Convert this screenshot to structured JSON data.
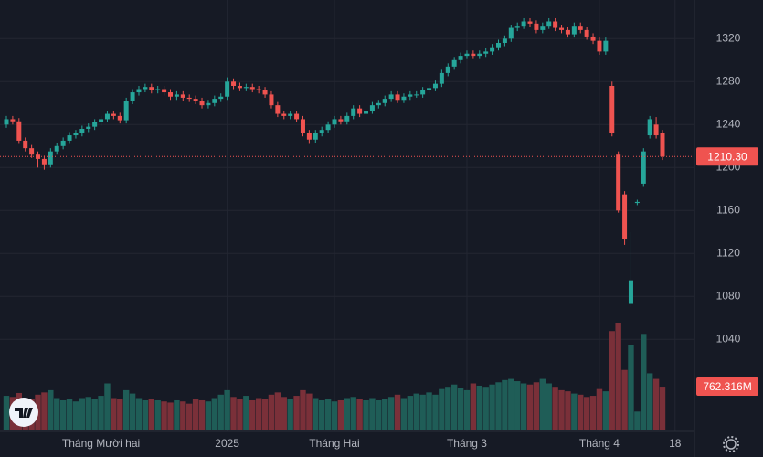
{
  "chart_data": {
    "type": "candlestick",
    "categories": [
      null,
      null,
      null,
      null,
      null,
      null,
      null,
      null,
      null,
      null,
      null,
      null,
      null,
      null,
      null,
      "Tháng Mười hai",
      null,
      null,
      null,
      null,
      null,
      null,
      null,
      null,
      null,
      null,
      null,
      null,
      null,
      null,
      null,
      null,
      null,
      null,
      null,
      "2025",
      null,
      null,
      null,
      null,
      null,
      null,
      null,
      null,
      null,
      null,
      null,
      null,
      null,
      null,
      null,
      null,
      "Tháng Hai",
      null,
      null,
      null,
      null,
      null,
      null,
      null,
      null,
      null,
      null,
      null,
      null,
      null,
      null,
      null,
      null,
      null,
      null,
      null,
      null,
      "Tháng 3",
      null,
      null,
      null,
      null,
      null,
      null,
      null,
      null,
      null,
      null,
      null,
      null,
      null,
      null,
      null,
      null,
      null,
      null,
      null,
      null,
      "Tháng 4",
      null,
      null,
      null,
      null,
      null,
      null,
      null,
      null,
      null,
      null,
      null,
      "18"
    ],
    "open": [
      1240,
      1245,
      1243,
      1225,
      1218,
      1212,
      1208,
      1203,
      1215,
      1220,
      1225,
      1230,
      1232,
      1236,
      1238,
      1242,
      1245,
      1250,
      1248,
      1244,
      1262,
      1270,
      1273,
      1275,
      1272,
      1273,
      1270,
      1266,
      1268,
      1265,
      1264,
      1262,
      1258,
      1260,
      1264,
      1266,
      1280,
      1276,
      1274,
      1275,
      1273,
      1272,
      1268,
      1258,
      1250,
      1248,
      1250,
      1245,
      1232,
      1226,
      1232,
      1235,
      1240,
      1245,
      1243,
      1248,
      1255,
      1250,
      1253,
      1258,
      1260,
      1264,
      1268,
      1263,
      1266,
      1268,
      1268,
      1272,
      1274,
      1278,
      1288,
      1294,
      1300,
      1304,
      1306,
      1304,
      1306,
      1308,
      1312,
      1316,
      1320,
      1330,
      1332,
      1336,
      1334,
      1328,
      1332,
      1336,
      1330,
      1328,
      1324,
      1332,
      1328,
      1322,
      1318,
      1308,
      1276,
      1212,
      1175,
      1073,
      1167,
      1185,
      1230,
      1240,
      1232,
      null,
      null
    ],
    "high": [
      1248,
      1248,
      1246,
      1228,
      1221,
      1215,
      1211,
      1218,
      1223,
      1228,
      1233,
      1235,
      1239,
      1241,
      1245,
      1248,
      1253,
      1253,
      1251,
      1265,
      1273,
      1276,
      1278,
      1278,
      1276,
      1276,
      1273,
      1271,
      1271,
      1268,
      1267,
      1265,
      1263,
      1267,
      1269,
      1284,
      1283,
      1279,
      1278,
      1278,
      1276,
      1275,
      1271,
      1261,
      1253,
      1253,
      1253,
      1248,
      1235,
      1235,
      1238,
      1243,
      1248,
      1248,
      1251,
      1258,
      1258,
      1256,
      1261,
      1263,
      1267,
      1271,
      1271,
      1269,
      1271,
      1271,
      1275,
      1277,
      1281,
      1291,
      1297,
      1303,
      1307,
      1309,
      1309,
      1309,
      1311,
      1315,
      1319,
      1323,
      1333,
      1335,
      1339,
      1339,
      1337,
      1335,
      1339,
      1339,
      1333,
      1331,
      1335,
      1335,
      1331,
      1325,
      1321,
      1321,
      1280,
      1215,
      1178,
      1140,
      1170,
      1218,
      1248,
      1247,
      1235,
      null,
      null
    ],
    "low": [
      1237,
      1240,
      1222,
      1215,
      1209,
      1200,
      1198,
      1200,
      1212,
      1217,
      1222,
      1227,
      1229,
      1233,
      1235,
      1239,
      1242,
      1245,
      1241,
      1241,
      1259,
      1267,
      1270,
      1269,
      1269,
      1267,
      1263,
      1263,
      1262,
      1261,
      1259,
      1255,
      1255,
      1257,
      1261,
      1263,
      1273,
      1271,
      1271,
      1270,
      1269,
      1265,
      1255,
      1247,
      1245,
      1245,
      1242,
      1229,
      1222,
      1223,
      1229,
      1232,
      1237,
      1240,
      1240,
      1245,
      1247,
      1247,
      1250,
      1255,
      1257,
      1261,
      1260,
      1260,
      1263,
      1265,
      1265,
      1269,
      1271,
      1275,
      1285,
      1291,
      1297,
      1301,
      1301,
      1301,
      1303,
      1305,
      1309,
      1313,
      1317,
      1327,
      1329,
      1331,
      1325,
      1325,
      1329,
      1327,
      1325,
      1321,
      1321,
      1325,
      1319,
      1315,
      1305,
      1305,
      1229,
      1158,
      1128,
      1070,
      1165,
      1182,
      1227,
      1227,
      1207,
      null,
      null
    ],
    "close": [
      1245,
      1243,
      1225,
      1218,
      1212,
      1208,
      1203,
      1215,
      1220,
      1225,
      1230,
      1232,
      1236,
      1238,
      1242,
      1245,
      1250,
      1248,
      1244,
      1262,
      1270,
      1273,
      1275,
      1272,
      1273,
      1270,
      1266,
      1268,
      1265,
      1264,
      1262,
      1258,
      1260,
      1264,
      1266,
      1280,
      1276,
      1274,
      1275,
      1273,
      1272,
      1268,
      1258,
      1250,
      1248,
      1250,
      1245,
      1232,
      1226,
      1232,
      1235,
      1240,
      1245,
      1243,
      1248,
      1255,
      1250,
      1253,
      1258,
      1260,
      1264,
      1268,
      1263,
      1266,
      1268,
      1268,
      1272,
      1274,
      1278,
      1288,
      1294,
      1300,
      1304,
      1306,
      1304,
      1306,
      1308,
      1312,
      1316,
      1320,
      1330,
      1332,
      1336,
      1334,
      1328,
      1332,
      1336,
      1330,
      1328,
      1324,
      1332,
      1328,
      1322,
      1318,
      1308,
      1318,
      1232,
      1160,
      1133,
      1095,
      1168,
      1215,
      1245,
      1230,
      1210.3,
      null,
      null
    ],
    "volume": [
      600,
      580,
      650,
      560,
      540,
      620,
      660,
      700,
      560,
      520,
      540,
      500,
      560,
      580,
      540,
      600,
      820,
      560,
      540,
      700,
      640,
      560,
      520,
      540,
      520,
      500,
      480,
      520,
      500,
      460,
      540,
      520,
      500,
      560,
      620,
      700,
      580,
      540,
      600,
      520,
      560,
      540,
      620,
      660,
      580,
      540,
      600,
      700,
      640,
      560,
      520,
      540,
      500,
      520,
      560,
      580,
      540,
      520,
      560,
      520,
      540,
      580,
      620,
      560,
      600,
      640,
      620,
      660,
      620,
      720,
      760,
      800,
      740,
      700,
      820,
      780,
      760,
      800,
      840,
      880,
      900,
      860,
      820,
      800,
      840,
      900,
      820,
      760,
      700,
      680,
      640,
      620,
      580,
      600,
      720,
      680,
      1750,
      1900,
      1060,
      1500,
      320,
      1700,
      1000,
      900,
      762.316,
      null,
      null
    ],
    "last_price": {
      "value": 1210.3,
      "label": "1210.30"
    },
    "last_volume": {
      "value": 762.316,
      "label": "762.316M"
    },
    "ylim": [
      956,
      1356
    ],
    "yticks": [
      1040,
      1080,
      1120,
      1160,
      1200,
      1240,
      1280,
      1320
    ],
    "grid": true,
    "up_color": "#26a69a",
    "down_color": "#ef5350",
    "volume_up_color": "#1f5d57",
    "volume_down_color": "#7a3039"
  }
}
